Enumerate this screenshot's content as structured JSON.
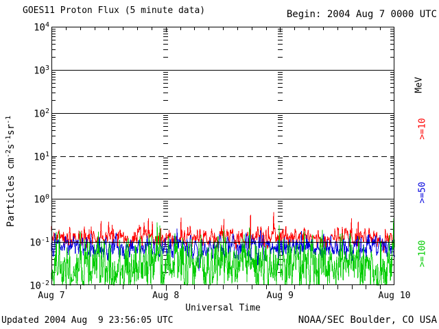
{
  "header": {
    "title": "GOES11 Proton Flux (5 minute data)",
    "begin_label": "Begin: 2004 Aug 7 0000 UTC"
  },
  "footer": {
    "updated": "Updated 2004 Aug  9 23:56:05 UTC",
    "source": "NOAA/SEC Boulder, CO USA"
  },
  "chart_data": {
    "type": "line",
    "title": "GOES11 Proton Flux (5 minute data)",
    "xlabel": "Universal Time",
    "ylabel_parts": [
      {
        "t": "Particles cm",
        "sup": false
      },
      {
        "t": "-2",
        "sup": true
      },
      {
        "t": "s",
        "sup": false
      },
      {
        "t": "-1",
        "sup": true
      },
      {
        "t": "sr",
        "sup": false
      },
      {
        "t": "-1",
        "sup": true
      }
    ],
    "x_start": "2004 Aug 7 0000 UTC",
    "x_end": "2004 Aug 10 0000 UTC",
    "x_tick_labels": [
      "Aug 7",
      "Aug 8",
      "Aug 9",
      "Aug 10"
    ],
    "x_minor_tick_hours": 3,
    "days_shown": 3,
    "cadence_minutes": 5,
    "n_points": 864,
    "y_scale": "log",
    "ylim": [
      0.01,
      10000
    ],
    "y_tick_base": "10",
    "y_tick_exponents": [
      4,
      3,
      2,
      1,
      0,
      -1,
      -2
    ],
    "solid_gridline_values": [
      1000,
      100,
      1,
      0.1
    ],
    "dashed_gridline_value": 10,
    "unit_label": "MeV",
    "series": [
      {
        "name": ">=10 MeV proton flux",
        "label": ">=10",
        "color": "#ff0000",
        "approx_median": 0.125,
        "approx_min": 0.07,
        "approx_max": 0.47,
        "log10_mean": -0.9,
        "log10_std": 0.11,
        "ar": 0.45,
        "spike_prob": 0.022,
        "spike_dex": 0.3,
        "seed": 7
      },
      {
        "name": ">=50 MeV proton flux",
        "label": ">=50",
        "color": "#0000dd",
        "approx_median": 0.074,
        "approx_min": 0.03,
        "approx_max": 0.2,
        "log10_mean": -1.13,
        "log10_std": 0.13,
        "ar": 0.45,
        "spike_prob": 0.012,
        "spike_dex": 0.2,
        "seed": 13
      },
      {
        "name": ">=100 MeV proton flux",
        "label": ">=100",
        "color": "#00cc00",
        "approx_median": 0.028,
        "approx_min": 0.01,
        "approx_max": 0.13,
        "log10_mean": -1.55,
        "log10_std": 0.34,
        "ar": 0.3,
        "spike_prob": 0,
        "spike_dex": 0,
        "seed": 42
      }
    ],
    "legend_position": "right-rotated",
    "grid": "decade lines across plot, log minor ticks on edges and at interior day boundaries"
  }
}
